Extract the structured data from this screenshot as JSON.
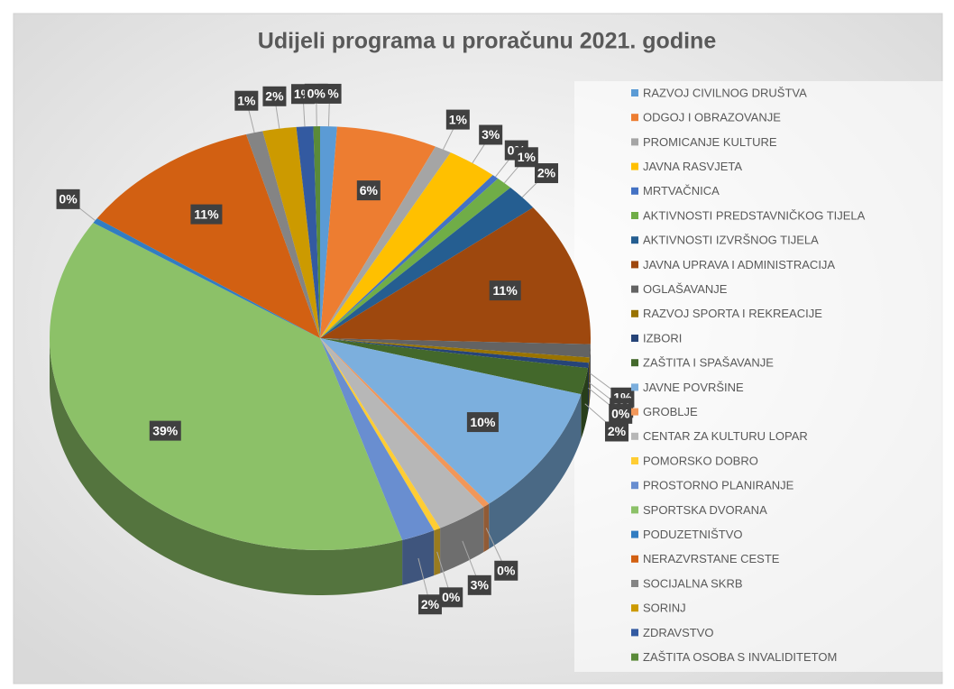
{
  "chart_data": {
    "type": "pie",
    "title": "Udijeli programa u proračunu 2021. godine",
    "categories": [
      "RAZVOJ CIVILNOG DRUŠTVA",
      "ODGOJ I OBRAZOVANJE",
      "PROMICANJE KULTURE",
      "JAVNA RASVJETA",
      "MRTVAČNICA",
      "AKTIVNOSTI PREDSTAVNIČKOG TIJELA",
      "AKTIVNOSTI IZVRŠNOG TIJELA",
      "JAVNA UPRAVA I ADMINISTRACIJA",
      "OGLAŠAVANJE",
      "RAZVOJ SPORTA I REKREACIJE",
      "IZBORI",
      "ZAŠTITA I SPAŠAVANJE",
      "JAVNE POVRŠINE",
      "GROBLJE",
      "CENTAR ZA KULTURU LOPAR",
      "POMORSKO DOBRO",
      "PROSTORNO PLANIRANJE",
      "SPORTSKA DVORANA",
      "PODUZETNIŠTVO",
      "NERAZVRSTANE CESTE",
      "SOCIJALNA SKRB",
      "SORINJ",
      "ZDRAVSTVO",
      "ZAŠTITA OSOBA S INVALIDITETOM"
    ],
    "values": [
      1,
      6,
      1,
      3,
      0.4,
      1,
      2,
      11,
      1,
      0.4,
      0.4,
      2,
      10,
      0.4,
      3,
      0.4,
      2,
      39,
      0.4,
      11,
      1,
      2,
      1,
      0.4
    ],
    "value_labels": [
      "1%",
      "6%",
      "1%",
      "3%",
      "0%",
      "1%",
      "2%",
      "11%",
      "1%",
      "0%",
      "0%",
      "2%",
      "10%",
      "0%",
      "3%",
      "0%",
      "2%",
      "39%",
      "0%",
      "11%",
      "1%",
      "2%",
      "1%",
      "0%"
    ],
    "colors": [
      "#5b9bd5",
      "#ed7d31",
      "#a5a5a5",
      "#ffc000",
      "#4472c4",
      "#70ad47",
      "#255e91",
      "#9e480e",
      "#636363",
      "#997300",
      "#264478",
      "#43682b",
      "#7cafdd",
      "#f1975a",
      "#b7b7b7",
      "#ffcd33",
      "#698ed0",
      "#8cc168",
      "#327dc2",
      "#d26012",
      "#848484",
      "#cc9a00",
      "#335aa1",
      "#5a8a39"
    ],
    "legend": "right"
  }
}
